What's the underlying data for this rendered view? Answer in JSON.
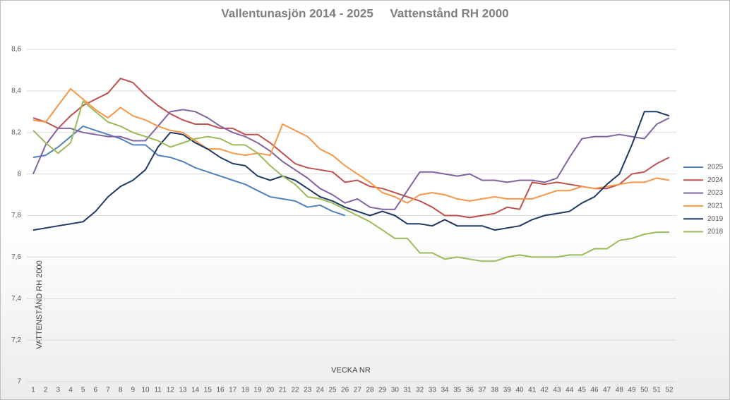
{
  "chart_data": {
    "type": "line",
    "title": "Vallentunasjön 2014 - 2025     Vattenstånd RH 2000",
    "y_label": "VATTENSTÅND RH 2000",
    "x_label": "VECKA NR",
    "categories": [
      "1",
      "2",
      "3",
      "4",
      "5",
      "6",
      "7",
      "8",
      "9",
      "10",
      "11",
      "12",
      "13",
      "14",
      "15",
      "16",
      "17",
      "18",
      "19",
      "20",
      "21",
      "22",
      "23",
      "24",
      "25",
      "26",
      "27",
      "28",
      "29",
      "30",
      "31",
      "32",
      "33",
      "34",
      "35",
      "36",
      "37",
      "38",
      "39",
      "40",
      "41",
      "42",
      "43",
      "44",
      "45",
      "46",
      "47",
      "48",
      "49",
      "50",
      "51",
      "52"
    ],
    "ylim": [
      7,
      8.6
    ],
    "yticks": [
      7,
      {
        "value": 7.2,
        "label": "7,2"
      },
      {
        "value": 7.4,
        "label": "7,4"
      },
      {
        "value": 7.6,
        "label": "7,6"
      },
      {
        "value": 7.8,
        "label": "7,8"
      },
      8,
      {
        "value": 8.2,
        "label": "8,2"
      },
      {
        "value": 8.4,
        "label": "8,4"
      },
      {
        "value": 8.6,
        "label": "8,6"
      }
    ],
    "grid": true,
    "legend": "right",
    "series": [
      {
        "name": "2025",
        "color": "#4f81bd",
        "values": [
          8.08,
          8.09,
          8.13,
          8.18,
          8.23,
          8.21,
          8.19,
          8.17,
          8.14,
          8.14,
          8.09,
          8.08,
          8.06,
          8.03,
          8.01,
          7.99,
          7.97,
          7.95,
          7.92,
          7.89,
          7.88,
          7.87,
          7.84,
          7.85,
          7.82,
          7.8,
          null,
          null,
          null,
          null,
          null,
          null,
          null,
          null,
          null,
          null,
          null,
          null,
          null,
          null,
          null,
          null,
          null,
          null,
          null,
          null,
          null,
          null,
          null,
          null,
          null,
          null
        ]
      },
      {
        "name": "2024",
        "color": "#c0504d",
        "values": [
          8.27,
          8.25,
          8.22,
          8.28,
          8.33,
          8.36,
          8.39,
          8.46,
          8.44,
          8.38,
          8.33,
          8.29,
          8.26,
          8.24,
          8.24,
          8.22,
          8.22,
          8.19,
          8.19,
          8.15,
          8.1,
          8.05,
          8.03,
          8.02,
          8.01,
          7.96,
          7.97,
          7.94,
          7.93,
          7.91,
          7.89,
          7.87,
          7.84,
          7.8,
          7.8,
          7.79,
          7.8,
          7.81,
          7.84,
          7.83,
          7.96,
          7.95,
          7.96,
          7.95,
          7.94,
          7.93,
          7.93,
          7.95,
          8.0,
          8.01,
          8.05,
          8.08
        ]
      },
      {
        "name": "2023",
        "color": "#8064a2",
        "values": [
          8.0,
          8.14,
          8.22,
          8.22,
          8.2,
          8.19,
          8.18,
          8.18,
          8.16,
          8.16,
          8.23,
          8.3,
          8.31,
          8.3,
          8.27,
          8.23,
          8.2,
          8.18,
          8.15,
          8.11,
          8.06,
          8.02,
          7.98,
          7.93,
          7.9,
          7.86,
          7.88,
          7.84,
          7.83,
          7.83,
          7.92,
          8.01,
          8.01,
          8.0,
          7.99,
          8.0,
          7.97,
          7.97,
          7.96,
          7.97,
          7.97,
          7.96,
          7.98,
          8.08,
          8.17,
          8.18,
          8.18,
          8.19,
          8.18,
          8.17,
          8.24,
          8.27
        ]
      },
      {
        "name": "2021",
        "color": "#f79646",
        "values": [
          8.26,
          8.25,
          8.33,
          8.41,
          8.36,
          8.31,
          8.27,
          8.32,
          8.28,
          8.26,
          8.23,
          8.21,
          8.2,
          8.16,
          8.12,
          8.12,
          8.1,
          8.09,
          8.1,
          8.09,
          8.24,
          8.21,
          8.18,
          8.12,
          8.09,
          8.04,
          8.0,
          7.96,
          7.91,
          7.89,
          7.86,
          7.9,
          7.91,
          7.9,
          7.88,
          7.87,
          7.88,
          7.89,
          7.88,
          7.88,
          7.88,
          7.9,
          7.92,
          7.92,
          7.94,
          7.93,
          7.94,
          7.95,
          7.96,
          7.96,
          7.98,
          7.97
        ]
      },
      {
        "name": "2019",
        "color": "#1f3864",
        "values": [
          7.73,
          7.74,
          7.75,
          7.76,
          7.77,
          7.82,
          7.89,
          7.94,
          7.97,
          8.02,
          8.13,
          8.2,
          8.19,
          8.15,
          8.12,
          8.08,
          8.05,
          8.04,
          7.99,
          7.97,
          7.99,
          7.97,
          7.93,
          7.89,
          7.87,
          7.84,
          7.82,
          7.8,
          7.82,
          7.8,
          7.76,
          7.76,
          7.75,
          7.78,
          7.75,
          7.75,
          7.75,
          7.73,
          7.74,
          7.75,
          7.78,
          7.8,
          7.81,
          7.82,
          7.86,
          7.89,
          7.95,
          8.0,
          8.14,
          8.3,
          8.3,
          8.28
        ]
      },
      {
        "name": "2018",
        "color": "#9bbb59",
        "values": [
          8.21,
          8.15,
          8.1,
          8.15,
          8.35,
          8.3,
          8.25,
          8.23,
          8.2,
          8.18,
          8.16,
          8.13,
          8.15,
          8.17,
          8.18,
          8.17,
          8.14,
          8.14,
          8.1,
          8.04,
          7.99,
          7.95,
          7.89,
          7.88,
          7.86,
          7.83,
          7.8,
          7.77,
          7.73,
          7.69,
          7.69,
          7.62,
          7.62,
          7.59,
          7.6,
          7.59,
          7.58,
          7.58,
          7.6,
          7.61,
          7.6,
          7.6,
          7.6,
          7.61,
          7.61,
          7.64,
          7.64,
          7.68,
          7.69,
          7.71,
          7.72,
          7.72
        ]
      }
    ]
  }
}
